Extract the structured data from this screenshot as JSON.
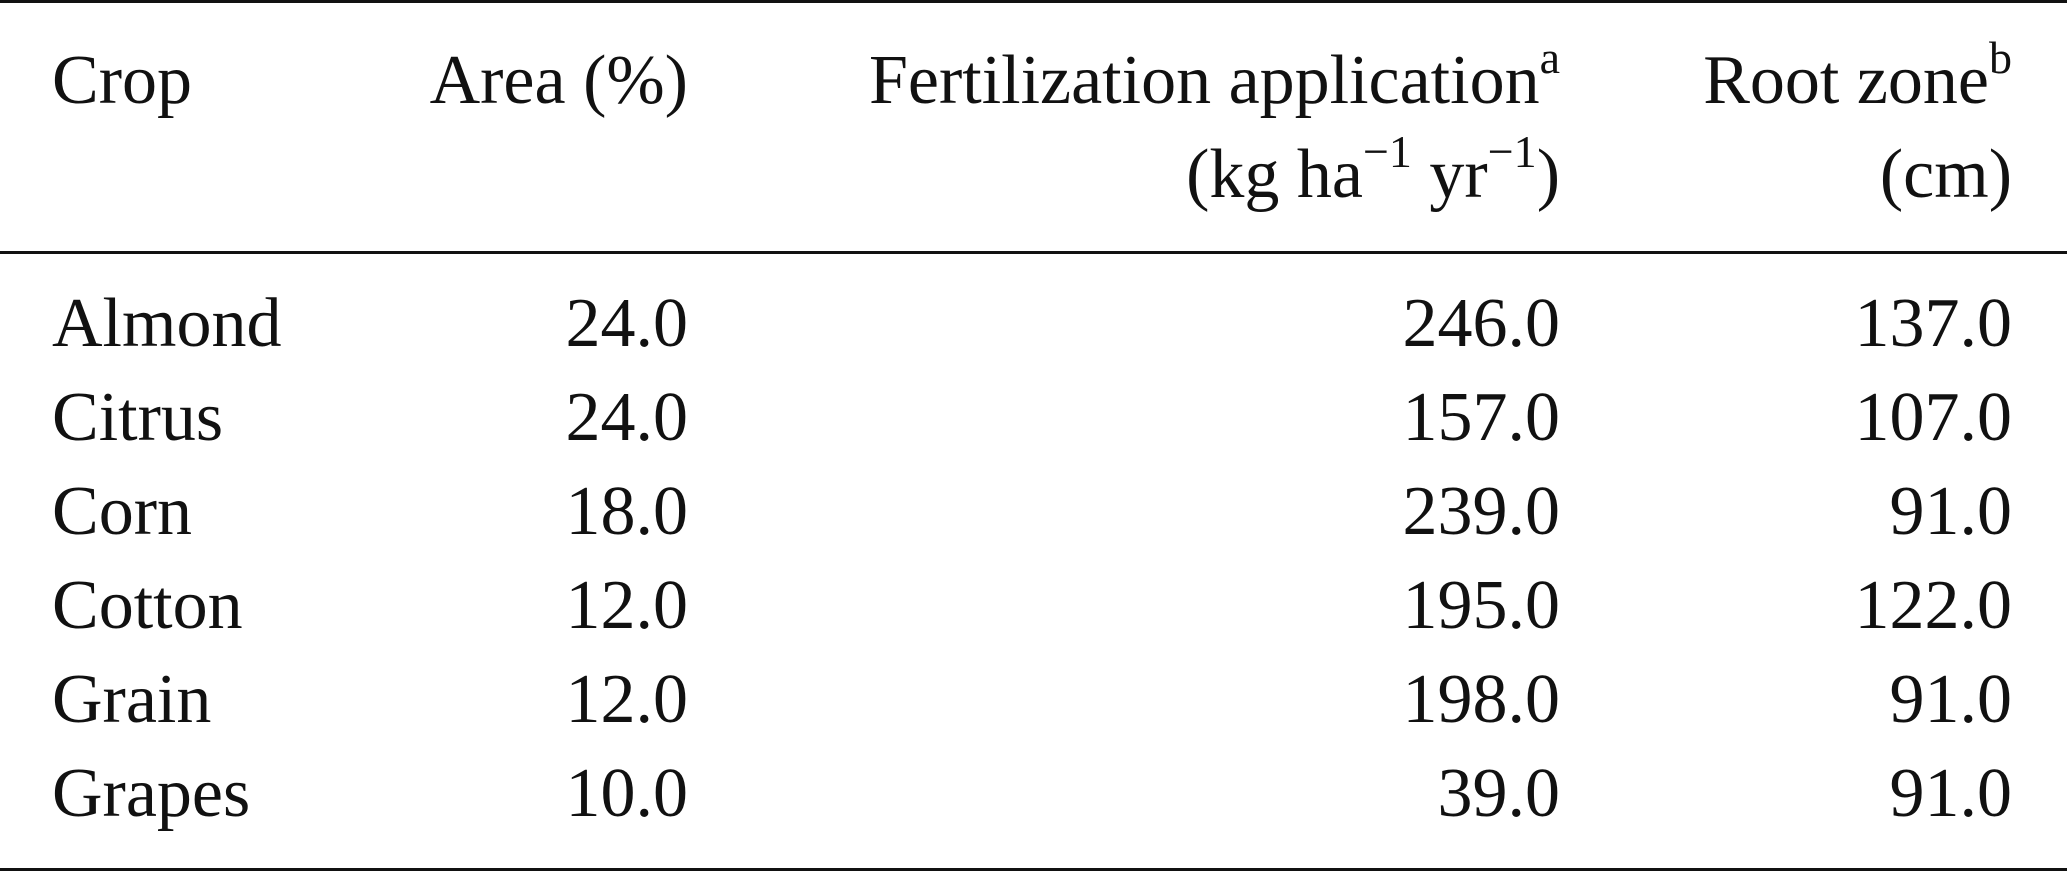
{
  "table": {
    "header": {
      "crop": "Crop",
      "area": "Area (%)",
      "fert_line1": "Fertilization application",
      "fert_sup": "a",
      "fert_line2_pre": "(kg ha",
      "fert_exp1": "−1",
      "fert_mid": " yr",
      "fert_exp2": "−1",
      "fert_post": ")",
      "root_line1": "Root zone",
      "root_sup": "b",
      "root_line2": "(cm)"
    },
    "rows": [
      {
        "crop": "Almond",
        "area": "24.0",
        "fert": "246.0",
        "root": "137.0"
      },
      {
        "crop": "Citrus",
        "area": "24.0",
        "fert": "157.0",
        "root": "107.0"
      },
      {
        "crop": "Corn",
        "area": "18.0",
        "fert": "239.0",
        "root": "91.0"
      },
      {
        "crop": "Cotton",
        "area": "12.0",
        "fert": "195.0",
        "root": "122.0"
      },
      {
        "crop": "Grain",
        "area": "12.0",
        "fert": "198.0",
        "root": "91.0"
      },
      {
        "crop": "Grapes",
        "area": "10.0",
        "fert": "39.0",
        "root": "91.0"
      }
    ]
  }
}
